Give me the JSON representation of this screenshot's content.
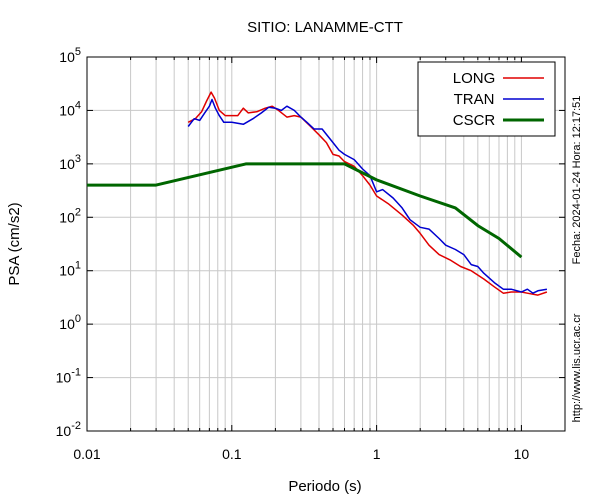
{
  "chart_data": {
    "type": "line",
    "title": "SITIO: LANAMME-CTT",
    "xlabel": "Periodo (s)",
    "ylabel": "PSA (cm/s2)",
    "xscale": "log",
    "yscale": "log",
    "xlim": [
      0.01,
      20
    ],
    "ylim": [
      0.01,
      100000
    ],
    "x_ticks": [
      {
        "value": 0.01,
        "label": "0.01"
      },
      {
        "value": 0.1,
        "label": "0.1"
      },
      {
        "value": 1,
        "label": "1"
      },
      {
        "value": 10,
        "label": "10"
      }
    ],
    "y_ticks": [
      {
        "value": 0.01,
        "base": "10",
        "exp": "-2"
      },
      {
        "value": 0.1,
        "base": "10",
        "exp": "-1"
      },
      {
        "value": 1,
        "base": "10",
        "exp": "0"
      },
      {
        "value": 10,
        "base": "10",
        "exp": "1"
      },
      {
        "value": 100,
        "base": "10",
        "exp": "2"
      },
      {
        "value": 1000,
        "base": "10",
        "exp": "3"
      },
      {
        "value": 10000,
        "base": "10",
        "exp": "4"
      },
      {
        "value": 100000,
        "base": "10",
        "exp": "5"
      }
    ],
    "grid": true,
    "legend_position": "top-right",
    "series": [
      {
        "name": "LONG",
        "color": "#e00000",
        "width": 1.5,
        "points": [
          [
            0.05,
            6000
          ],
          [
            0.056,
            7000
          ],
          [
            0.062,
            9500
          ],
          [
            0.067,
            15000
          ],
          [
            0.072,
            22000
          ],
          [
            0.076,
            17000
          ],
          [
            0.082,
            10000
          ],
          [
            0.09,
            8000
          ],
          [
            0.1,
            8000
          ],
          [
            0.11,
            8000
          ],
          [
            0.12,
            11000
          ],
          [
            0.13,
            9000
          ],
          [
            0.15,
            9500
          ],
          [
            0.17,
            11000
          ],
          [
            0.19,
            12000
          ],
          [
            0.21,
            10000
          ],
          [
            0.24,
            7500
          ],
          [
            0.27,
            8000
          ],
          [
            0.3,
            7500
          ],
          [
            0.35,
            5000
          ],
          [
            0.4,
            3500
          ],
          [
            0.45,
            2500
          ],
          [
            0.5,
            1500
          ],
          [
            0.55,
            1400
          ],
          [
            0.6,
            1100
          ],
          [
            0.7,
            900
          ],
          [
            0.8,
            600
          ],
          [
            0.9,
            400
          ],
          [
            1.0,
            250
          ],
          [
            1.2,
            180
          ],
          [
            1.5,
            110
          ],
          [
            1.8,
            70
          ],
          [
            2.0,
            50
          ],
          [
            2.3,
            30
          ],
          [
            2.7,
            20
          ],
          [
            3.2,
            16
          ],
          [
            3.8,
            12
          ],
          [
            4.5,
            10
          ],
          [
            5.5,
            7
          ],
          [
            6.5,
            5
          ],
          [
            7.5,
            3.8
          ],
          [
            8.5,
            4
          ],
          [
            10,
            4
          ],
          [
            11,
            3.8
          ],
          [
            13,
            3.5
          ],
          [
            15,
            4
          ]
        ]
      },
      {
        "name": "TRAN",
        "color": "#0000d0",
        "width": 1.5,
        "points": [
          [
            0.05,
            5000
          ],
          [
            0.055,
            7000
          ],
          [
            0.06,
            6500
          ],
          [
            0.065,
            9000
          ],
          [
            0.07,
            12000
          ],
          [
            0.073,
            16000
          ],
          [
            0.077,
            11000
          ],
          [
            0.082,
            8000
          ],
          [
            0.088,
            6000
          ],
          [
            0.1,
            6000
          ],
          [
            0.12,
            5500
          ],
          [
            0.14,
            7000
          ],
          [
            0.16,
            9000
          ],
          [
            0.18,
            11500
          ],
          [
            0.2,
            11000
          ],
          [
            0.22,
            10000
          ],
          [
            0.24,
            12000
          ],
          [
            0.27,
            10000
          ],
          [
            0.3,
            7500
          ],
          [
            0.33,
            6000
          ],
          [
            0.37,
            4500
          ],
          [
            0.42,
            4500
          ],
          [
            0.5,
            2500
          ],
          [
            0.55,
            1800
          ],
          [
            0.6,
            1500
          ],
          [
            0.7,
            1200
          ],
          [
            0.8,
            800
          ],
          [
            0.9,
            600
          ],
          [
            1.0,
            300
          ],
          [
            1.1,
            330
          ],
          [
            1.3,
            230
          ],
          [
            1.5,
            150
          ],
          [
            1.7,
            90
          ],
          [
            2.0,
            65
          ],
          [
            2.3,
            60
          ],
          [
            2.7,
            40
          ],
          [
            3.0,
            30
          ],
          [
            3.5,
            25
          ],
          [
            4.0,
            20
          ],
          [
            4.5,
            13
          ],
          [
            5.0,
            12
          ],
          [
            5.5,
            9
          ],
          [
            6.5,
            6
          ],
          [
            7.5,
            4.5
          ],
          [
            8.5,
            4.5
          ],
          [
            10,
            4
          ],
          [
            11,
            4.5
          ],
          [
            12,
            3.8
          ],
          [
            13,
            4.2
          ],
          [
            15,
            4.5
          ]
        ]
      },
      {
        "name": "CSCR",
        "color": "#006600",
        "width": 3,
        "points": [
          [
            0.01,
            400
          ],
          [
            0.03,
            400
          ],
          [
            0.125,
            1000
          ],
          [
            0.6,
            1000
          ],
          [
            1.0,
            500
          ],
          [
            2.0,
            250
          ],
          [
            3.5,
            150
          ],
          [
            5.0,
            70
          ],
          [
            7.0,
            40
          ],
          [
            10,
            18
          ]
        ]
      }
    ]
  },
  "side_labels": {
    "date": "Fecha: 2024-01-24 Hora: 12:17:51",
    "url": "http://www.lis.ucr.ac.cr"
  }
}
